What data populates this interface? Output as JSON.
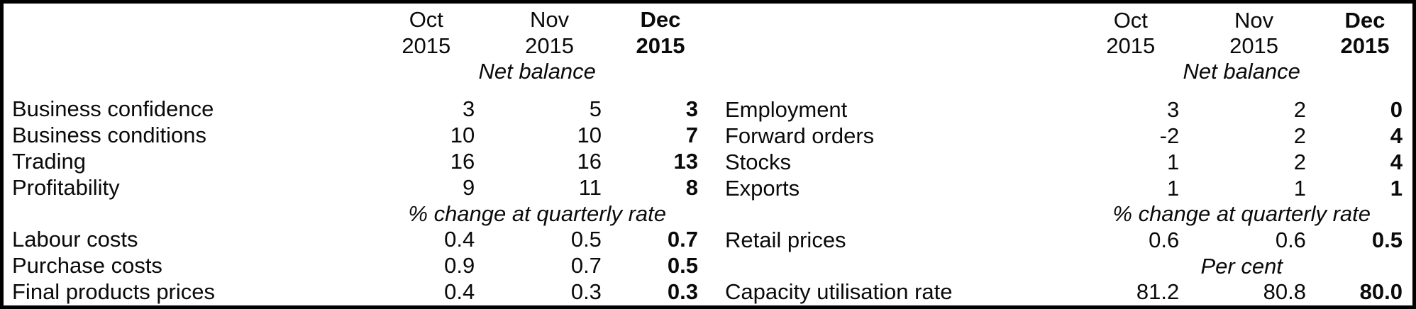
{
  "page": {
    "background": "#ffffff",
    "border_color": "#000000",
    "text_color": "#0a0a0a"
  },
  "left_table": {
    "header": {
      "months": [
        "Oct",
        "Nov",
        "Dec"
      ],
      "years": [
        "2015",
        "2015",
        "2015"
      ]
    },
    "section1_label": "Net balance",
    "section1_rows": [
      {
        "label": "Business confidence",
        "values": [
          "3",
          "5",
          "3"
        ]
      },
      {
        "label": "Business conditions",
        "values": [
          "10",
          "10",
          "7"
        ]
      },
      {
        "label": "Trading",
        "values": [
          "16",
          "16",
          "13"
        ]
      },
      {
        "label": "Profitability",
        "values": [
          "9",
          "11",
          "8"
        ]
      }
    ],
    "section2_label": "% change at quarterly rate",
    "section2_rows": [
      {
        "label": "Labour costs",
        "values": [
          "0.4",
          "0.5",
          "0.7"
        ]
      },
      {
        "label": "Purchase costs",
        "values": [
          "0.9",
          "0.7",
          "0.5"
        ]
      },
      {
        "label": "Final products prices",
        "values": [
          "0.4",
          "0.3",
          "0.3"
        ]
      }
    ]
  },
  "right_table": {
    "header": {
      "months": [
        "Oct",
        "Nov",
        "Dec"
      ],
      "years": [
        "2015",
        "2015",
        "2015"
      ]
    },
    "section1_label": "Net balance",
    "section1_rows": [
      {
        "label": "Employment",
        "values": [
          "3",
          "2",
          "0"
        ]
      },
      {
        "label": "Forward orders",
        "values": [
          "-2",
          "2",
          "4"
        ]
      },
      {
        "label": "Stocks",
        "values": [
          "1",
          "2",
          "4"
        ]
      },
      {
        "label": "Exports",
        "values": [
          "1",
          "1",
          "1"
        ]
      }
    ],
    "section2_label": "% change at quarterly rate",
    "section2_rows": [
      {
        "label": "Retail prices",
        "values": [
          "0.6",
          "0.6",
          "0.5"
        ]
      }
    ],
    "section3_label": "Per cent",
    "section3_rows": [
      {
        "label": "Capacity utilisation rate",
        "values": [
          "81.2",
          "80.8",
          "80.0"
        ]
      }
    ]
  }
}
